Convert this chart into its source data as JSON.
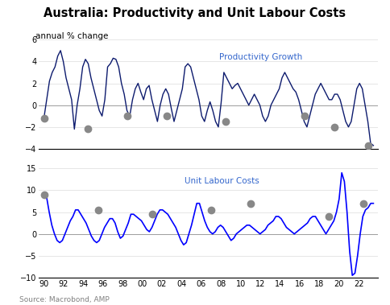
{
  "title": "Australia: Productivity and Unit Labour Costs",
  "subtitle": "annual % change",
  "source": "Source: Macrobond, AMP",
  "line_color_prod": "#0d1b6e",
  "line_color_ulc": "#0000ff",
  "marker_color": "#888888",
  "x_labels": [
    "90",
    "92",
    "94",
    "96",
    "98",
    "00",
    "02",
    "04",
    "06",
    "08",
    "10",
    "12",
    "14",
    "16",
    "18",
    "20",
    "22"
  ],
  "prod_ylim": [
    -4,
    6
  ],
  "ulc_ylim": [
    -10,
    15
  ],
  "prod_yticks": [
    -4,
    -2,
    0,
    2,
    4,
    6
  ],
  "ulc_yticks": [
    -10,
    -5,
    0,
    5,
    10,
    15
  ],
  "prod_label": "Productivity Growth",
  "ulc_label": "Unit Labour Costs",
  "prod_data": [
    -1.2,
    0.5,
    2.2,
    3.0,
    3.5,
    4.5,
    5.0,
    4.0,
    2.5,
    1.5,
    0.5,
    -2.2,
    0.0,
    1.5,
    3.5,
    4.2,
    3.8,
    2.5,
    1.5,
    0.5,
    -0.5,
    -1.0,
    0.5,
    3.5,
    3.8,
    4.3,
    4.2,
    3.5,
    2.0,
    1.0,
    -0.5,
    -1.0,
    0.5,
    1.5,
    2.0,
    1.2,
    0.5,
    1.5,
    1.8,
    0.5,
    -0.5,
    -1.5,
    0.0,
    1.0,
    1.5,
    1.0,
    -0.3,
    -1.5,
    -0.5,
    0.5,
    1.5,
    3.5,
    3.8,
    3.5,
    2.5,
    1.5,
    0.5,
    -1.0,
    -1.5,
    -0.5,
    0.3,
    -0.5,
    -1.5,
    -2.0,
    0.2,
    3.0,
    2.5,
    2.0,
    1.5,
    1.8,
    2.0,
    1.5,
    1.0,
    0.5,
    0.0,
    0.5,
    1.0,
    0.5,
    0.0,
    -1.0,
    -1.5,
    -1.0,
    0.0,
    0.5,
    1.0,
    1.5,
    2.5,
    3.0,
    2.5,
    2.0,
    1.5,
    1.2,
    0.5,
    -0.5,
    -1.5,
    -2.0,
    -1.0,
    0.0,
    1.0,
    1.5,
    2.0,
    1.5,
    1.0,
    0.5,
    0.5,
    1.0,
    1.0,
    0.5,
    -0.5,
    -1.5,
    -2.0,
    -1.5,
    0.0,
    1.5,
    2.0,
    1.5,
    0.0,
    -1.5,
    -3.5,
    -3.7
  ],
  "ulc_data": [
    9.0,
    8.5,
    5.0,
    2.0,
    0.0,
    -1.5,
    -2.0,
    -1.5,
    0.0,
    1.5,
    3.0,
    4.0,
    5.5,
    5.5,
    4.5,
    3.5,
    2.5,
    1.0,
    -0.5,
    -1.5,
    -2.0,
    -1.5,
    0.0,
    1.5,
    2.5,
    3.5,
    3.5,
    2.5,
    0.5,
    -1.0,
    -0.5,
    1.0,
    2.5,
    4.5,
    4.5,
    4.0,
    3.5,
    3.0,
    2.0,
    1.0,
    0.5,
    1.5,
    3.0,
    4.5,
    5.5,
    5.5,
    5.0,
    4.5,
    3.5,
    2.5,
    1.5,
    0.0,
    -1.5,
    -2.5,
    -2.0,
    0.0,
    2.0,
    4.5,
    7.0,
    7.0,
    5.0,
    3.0,
    1.5,
    0.5,
    0.0,
    0.5,
    1.5,
    2.0,
    1.5,
    0.5,
    -0.5,
    -1.5,
    -1.0,
    0.0,
    0.5,
    1.0,
    1.5,
    2.0,
    2.0,
    1.5,
    1.0,
    0.5,
    0.0,
    0.5,
    1.0,
    2.0,
    2.5,
    3.0,
    4.0,
    4.0,
    3.5,
    2.5,
    1.5,
    1.0,
    0.5,
    0.0,
    0.5,
    1.0,
    1.5,
    2.0,
    2.5,
    3.5,
    4.0,
    4.0,
    3.0,
    2.0,
    1.0,
    0.0,
    1.0,
    2.0,
    3.0,
    5.0,
    8.0,
    14.0,
    12.0,
    5.0,
    -4.0,
    -9.5,
    -9.0,
    -5.0,
    0.0,
    4.0,
    5.5,
    6.0,
    7.0,
    7.0
  ],
  "prod_trough_x": [
    1990.0,
    1994.5,
    1998.5,
    2002.5,
    2008.5,
    2016.5,
    2019.5,
    2023.0
  ],
  "prod_trough_y": [
    -1.2,
    -2.2,
    -1.0,
    -1.0,
    -1.5,
    -1.0,
    -2.0,
    -3.7
  ],
  "ulc_peak_x": [
    1990.0,
    1995.5,
    2001.0,
    2007.0,
    2011.0,
    2019.0,
    2022.5
  ],
  "ulc_peak_y": [
    9.0,
    5.5,
    4.5,
    5.5,
    7.0,
    4.0,
    7.0
  ]
}
